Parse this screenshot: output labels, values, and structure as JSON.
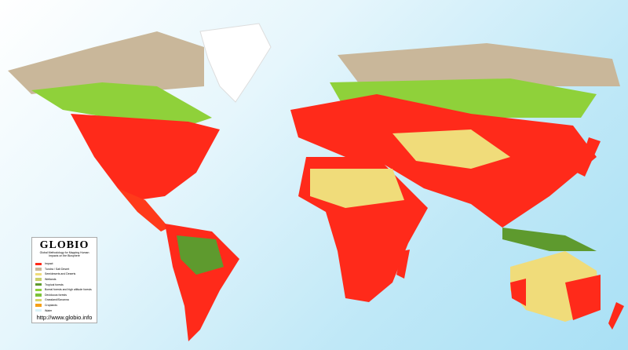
{
  "legend": {
    "logo": "GLOBIO",
    "subtitle": "Global Methodology for Mapping Human Impacts on the Biosphere",
    "items": [
      {
        "label": "Impact",
        "color": "#ff2a1a"
      },
      {
        "label": "Tundra / Salt Desert",
        "color": "#c9b79a"
      },
      {
        "label": "Semideserts and Deserts",
        "color": "#f0dc7a"
      },
      {
        "label": "Wetlands",
        "color": "#c8cf6a"
      },
      {
        "label": "Tropical forests",
        "color": "#5e9a2e"
      },
      {
        "label": "Boreal forests and high altitude forests",
        "color": "#8fd13a"
      },
      {
        "label": "Deciduous forests",
        "color": "#7cc23a"
      },
      {
        "label": "Grassland/Savanna",
        "color": "#d7d46a"
      },
      {
        "label": "Croplands",
        "color": "#f5a018"
      },
      {
        "label": "Water",
        "color": "#d9f3f8"
      }
    ],
    "url": "http://www.globio.info"
  }
}
